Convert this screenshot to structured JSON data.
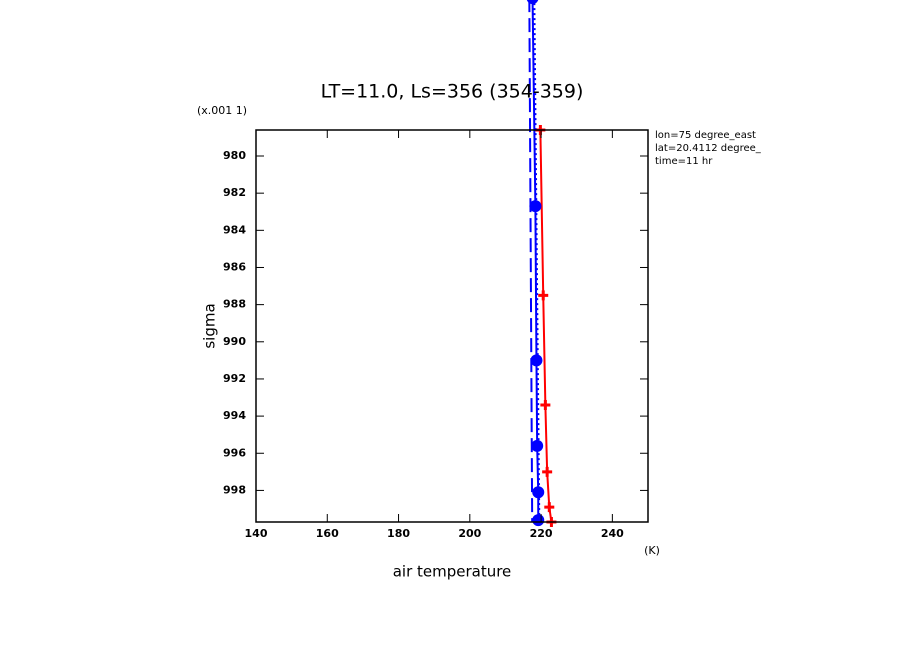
{
  "chart_data": {
    "type": "line",
    "title": "LT=11.0, Ls=356 (354-359)",
    "y_scale_label": "(x.001 1)",
    "ylabel": "sigma",
    "xlabel": "air temperature",
    "x_unit": "(K)",
    "annotations": [
      "lon=75 degree_east",
      "lat=20.4112 degree_",
      "time=11 hr"
    ],
    "xlim": [
      140,
      250
    ],
    "xticks": [
      140,
      160,
      180,
      200,
      220,
      240
    ],
    "ylim": [
      978.6,
      999.7
    ],
    "yticks": [
      980,
      982,
      984,
      986,
      988,
      990,
      992,
      994,
      996,
      998
    ],
    "y_inverted": true,
    "series": [
      {
        "color": "#ff0000",
        "dash": "solid",
        "marker": "plus",
        "x": [
          219.8,
          220.6,
          221.2,
          221.7,
          222.3,
          222.9
        ],
        "values": [
          978.6,
          987.5,
          993.4,
          997.0,
          998.9,
          999.7
        ]
      },
      {
        "color": "#0000ff",
        "dash": "solid",
        "marker": "circle",
        "x": [
          217.6,
          218.4,
          218.7,
          218.9,
          219.2,
          219.2
        ],
        "values": [
          971.5,
          982.7,
          991.0,
          995.6,
          998.1,
          999.6
        ]
      },
      {
        "color": "#0000ff",
        "dash": "dashed",
        "marker": "none",
        "x": [
          216.7,
          217.5
        ],
        "values": [
          971.5,
          999.7
        ]
      },
      {
        "color": "#0000ff",
        "dash": "dotted",
        "marker": "none",
        "x": [
          218.1,
          219.5
        ],
        "values": [
          971.5,
          999.7
        ]
      }
    ]
  }
}
